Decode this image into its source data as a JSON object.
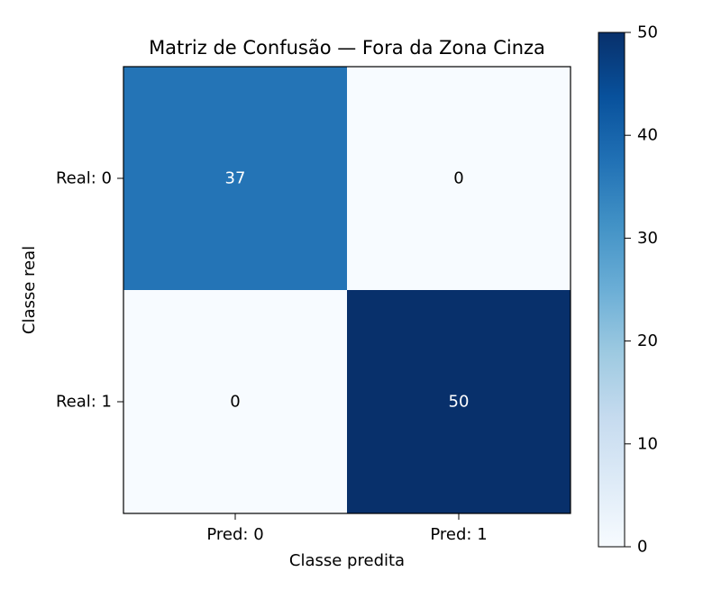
{
  "chart_data": {
    "type": "heatmap",
    "title": "Matriz de Confusão — Fora da Zona Cinza",
    "xlabel": "Classe predita",
    "ylabel": "Classe real",
    "x_categories": [
      "Pred: 0",
      "Pred: 1"
    ],
    "y_categories": [
      "Real: 0",
      "Real: 1"
    ],
    "values": [
      [
        37,
        0
      ],
      [
        0,
        50
      ]
    ],
    "colormap": "Blues",
    "colorbar": {
      "range": [
        0,
        50
      ],
      "ticks": [
        0,
        10,
        20,
        30,
        40,
        50
      ],
      "tick_labels": [
        "0",
        "10",
        "20",
        "30",
        "40",
        "50"
      ]
    },
    "colors": {
      "low": "#f7fbff",
      "high": "#08306b"
    }
  }
}
